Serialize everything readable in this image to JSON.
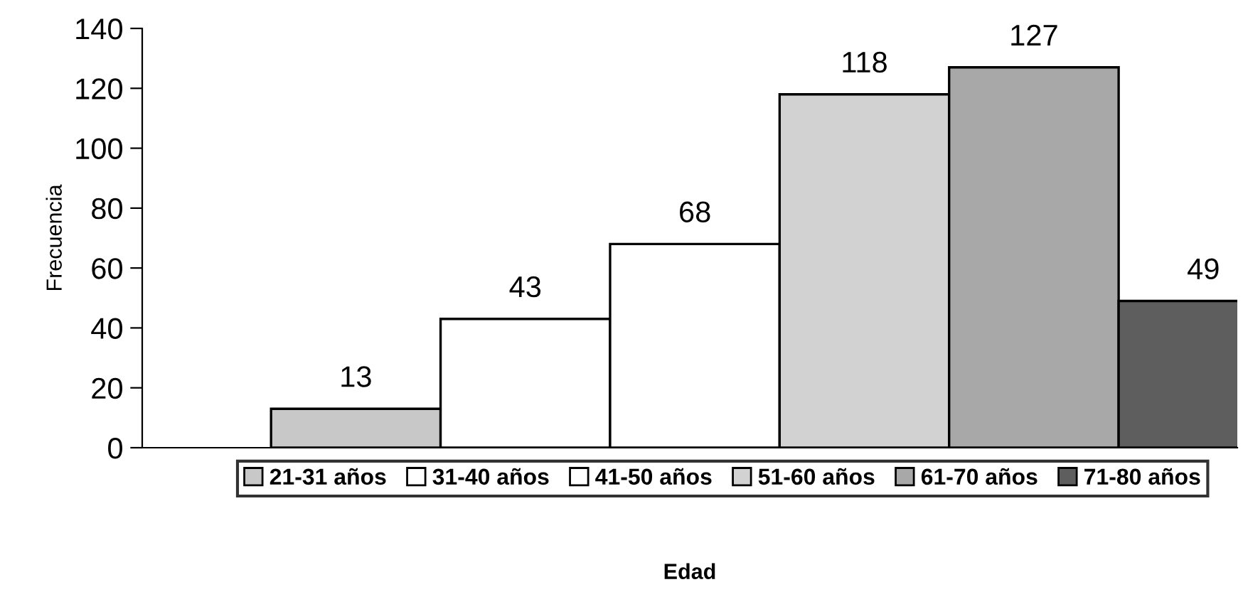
{
  "chart_data": {
    "type": "bar",
    "stacked": true,
    "xlabel": "Edad",
    "ylabel": "Frecuencia",
    "categories": [
      null,
      null,
      null,
      null,
      null,
      null
    ],
    "series": [
      {
        "name": "21-31 años",
        "color": "#c8c8c8",
        "values": [
          13,
          null,
          null,
          null,
          null,
          null
        ]
      },
      {
        "name": "31-40 años",
        "color": "#ffffff",
        "values": [
          null,
          43,
          null,
          null,
          null,
          null
        ]
      },
      {
        "name": "41-50 años",
        "color": "#ffffff",
        "values": [
          null,
          null,
          68,
          null,
          null,
          null
        ]
      },
      {
        "name": "51-60 años",
        "color": "#d2d2d2",
        "values": [
          null,
          null,
          null,
          118,
          null,
          null
        ]
      },
      {
        "name": "61-70 años",
        "color": "#a8a8a8",
        "values": [
          null,
          null,
          null,
          null,
          127,
          null
        ]
      },
      {
        "name": "71-80 años",
        "color": "#5e5e5e",
        "values": [
          null,
          null,
          null,
          null,
          null,
          49
        ]
      }
    ],
    "ylim": [
      0,
      140
    ],
    "yticks": [
      0,
      20,
      40,
      60,
      80,
      100,
      120,
      140
    ],
    "data_labels": true,
    "legend": "bottom",
    "grid": false
  }
}
